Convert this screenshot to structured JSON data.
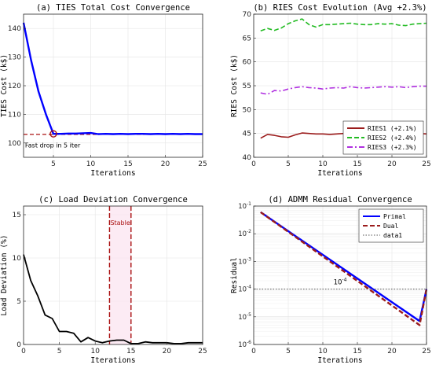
{
  "chart_data": [
    {
      "id": "a",
      "type": "line",
      "title": "(a) TIES Total Cost Convergence",
      "xlabel": "Iterations",
      "ylabel": "TIES Cost (k$)",
      "xlim": [
        1,
        25
      ],
      "ylim": [
        95,
        145
      ],
      "xticks": [
        5,
        10,
        15,
        20,
        25
      ],
      "yticks": [
        100,
        110,
        120,
        130,
        140
      ],
      "grid": true,
      "series": [
        {
          "color": "#0000ff",
          "x": [
            1,
            2,
            3,
            4,
            5,
            6,
            7,
            8,
            9,
            10,
            11,
            12,
            13,
            14,
            15,
            16,
            17,
            18,
            19,
            20,
            21,
            22,
            23,
            24,
            25
          ],
          "y": [
            142,
            129,
            118,
            110,
            103.2,
            103.2,
            103.3,
            103.3,
            103.4,
            103.5,
            103.1,
            103.2,
            103.1,
            103.2,
            103.1,
            103.2,
            103.2,
            103.1,
            103.2,
            103.1,
            103.2,
            103.1,
            103.2,
            103.1,
            103.1
          ]
        }
      ],
      "reference_line": {
        "y": 103,
        "color": "#aa1111",
        "style": "dashed"
      },
      "marker": {
        "x": 5,
        "y": 103.2,
        "color": "#aa1111"
      },
      "annotation": {
        "text": "Fast drop in 5 iter",
        "x": 1.2,
        "y": 99.5
      }
    },
    {
      "id": "b",
      "type": "line",
      "title": "(b) RIES Cost Evolution (Avg +2.3%)",
      "xlabel": "Iterations",
      "ylabel": "RIES Cost (k$)",
      "xlim": [
        0,
        25
      ],
      "ylim": [
        40,
        70
      ],
      "xticks": [
        0,
        5,
        10,
        15,
        20,
        25
      ],
      "yticks": [
        40,
        45,
        50,
        55,
        60,
        65,
        70
      ],
      "grid": true,
      "legend_position": "bottom-right",
      "series": [
        {
          "name": "RIES1 (+2.1%)",
          "color": "#9b1c1c",
          "style": "solid",
          "x": [
            1,
            2,
            3,
            4,
            5,
            6,
            7,
            8,
            9,
            10,
            11,
            12,
            13,
            14,
            15,
            16,
            17,
            18,
            19,
            20,
            21,
            22,
            23,
            24,
            25
          ],
          "y": [
            44,
            44.8,
            44.6,
            44.3,
            44.2,
            44.7,
            45.1,
            45.0,
            44.9,
            44.9,
            44.8,
            44.9,
            45.0,
            44.9,
            45.0,
            44.9,
            44.9,
            44.8,
            44.9,
            45.0,
            44.9,
            44.9,
            44.9,
            45.0,
            44.9
          ]
        },
        {
          "name": "RIES2 (+2.4%)",
          "color": "#22bb22",
          "style": "dashed",
          "x": [
            1,
            2,
            3,
            4,
            5,
            6,
            7,
            8,
            9,
            10,
            11,
            12,
            13,
            14,
            15,
            16,
            17,
            18,
            19,
            20,
            21,
            22,
            23,
            24,
            25
          ],
          "y": [
            66.5,
            67.0,
            66.6,
            67.1,
            68.0,
            68.6,
            69.0,
            67.8,
            67.3,
            67.8,
            67.8,
            67.9,
            68.0,
            68.1,
            67.9,
            67.8,
            67.8,
            68.0,
            67.9,
            68.0,
            67.7,
            67.6,
            67.9,
            68.0,
            68.1
          ]
        },
        {
          "name": "RIES3 (+2.3%)",
          "color": "#b030e0",
          "style": "dashdot",
          "x": [
            1,
            2,
            3,
            4,
            5,
            6,
            7,
            8,
            9,
            10,
            11,
            12,
            13,
            14,
            15,
            16,
            17,
            18,
            19,
            20,
            21,
            22,
            23,
            24,
            25
          ],
          "y": [
            53.5,
            53.2,
            54.0,
            53.9,
            54.3,
            54.6,
            54.8,
            54.6,
            54.5,
            54.3,
            54.5,
            54.6,
            54.5,
            54.8,
            54.6,
            54.5,
            54.6,
            54.7,
            54.8,
            54.7,
            54.8,
            54.6,
            54.8,
            54.9,
            54.9
          ]
        }
      ]
    },
    {
      "id": "c",
      "type": "line",
      "title": "(c) Load Deviation Convergence",
      "xlabel": "Iterations",
      "ylabel": "Load Deviation (%)",
      "xlim": [
        0,
        25
      ],
      "ylim": [
        0,
        16
      ],
      "xticks": [
        0,
        5,
        10,
        15,
        20,
        25
      ],
      "yticks": [
        0,
        5,
        10,
        15
      ],
      "grid": true,
      "series": [
        {
          "color": "#000000",
          "x": [
            0,
            1,
            2,
            3,
            4,
            5,
            6,
            7,
            8,
            9,
            10,
            11,
            12,
            13,
            14,
            15,
            16,
            17,
            18,
            19,
            20,
            21,
            22,
            23,
            24,
            25
          ],
          "y": [
            10.4,
            7.4,
            5.6,
            3.4,
            3.0,
            1.5,
            1.5,
            1.3,
            0.3,
            0.8,
            0.4,
            0.2,
            0.4,
            0.5,
            0.5,
            0.1,
            0.1,
            0.3,
            0.2,
            0.2,
            0.2,
            0.1,
            0.1,
            0.2,
            0.2,
            0.2
          ]
        }
      ],
      "vlines": [
        {
          "x": 12,
          "color": "#aa1111"
        },
        {
          "x": 15,
          "color": "#aa1111"
        }
      ],
      "band": {
        "from": 12,
        "to": 15,
        "label": "Stable"
      }
    },
    {
      "id": "d",
      "type": "line",
      "title": "(d) ADMM Residual Convergence",
      "xlabel": "Iterations",
      "ylabel": "Residual",
      "xlim": [
        0,
        25
      ],
      "ylim_exp": [
        -6,
        -1
      ],
      "yscale": "log",
      "xticks": [
        0,
        5,
        10,
        15,
        20,
        25
      ],
      "ytick_labels": [
        "10^-6",
        "10^-5",
        "10^-4",
        "10^-3",
        "10^-2",
        "10^-1"
      ],
      "grid": true,
      "legend_position": "top-right",
      "series": [
        {
          "name": "Primal",
          "color": "#0000ff",
          "style": "solid",
          "x": [
            1,
            24,
            25
          ],
          "y": [
            0.06,
            7e-06,
            0.0001
          ]
        },
        {
          "name": "Dual",
          "color": "#9b1c1c",
          "style": "dashed",
          "x": [
            1,
            24,
            25
          ],
          "y": [
            0.06,
            5e-06,
            0.0001
          ]
        },
        {
          "name": "data1",
          "color": "#555555",
          "style": "dotted",
          "x": [
            0,
            25
          ],
          "y": [
            0.0001,
            0.0001
          ]
        }
      ],
      "annotation": {
        "text": "10^-4",
        "x": 12.5,
        "y": 0.00015
      }
    }
  ]
}
